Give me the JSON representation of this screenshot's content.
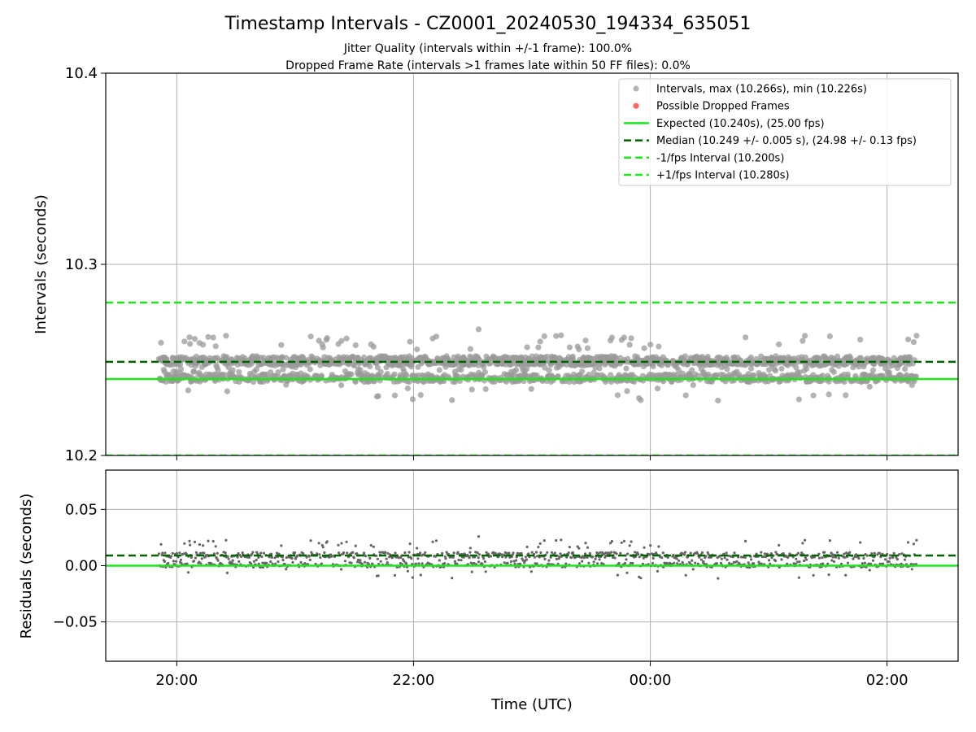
{
  "figure": {
    "title": "Timestamp Intervals - CZ0001_20240530_194334_635051",
    "subtitle_1": "Jitter Quality (intervals within +/-1 frame): 100.0%",
    "subtitle_2": "Dropped Frame Rate (intervals >1 frames late within 50 FF files): 0.0%"
  },
  "colors": {
    "points_top": "#999999",
    "points_bottom": "#666666",
    "dropped": "#ff3333",
    "expected": "#1ae81a",
    "median": "#006400",
    "grid": "#b0b0b0"
  },
  "chart_data": [
    {
      "type": "scatter",
      "panel": "intervals",
      "ylabel": "Intervals (seconds)",
      "ylim": [
        10.2,
        10.4
      ],
      "yticks": [
        "10.2",
        "10.3",
        "10.4"
      ],
      "xlim_hours": [
        19.4,
        26.6
      ],
      "grid": true,
      "legend_position": "upper-right",
      "series": [
        {
          "name": "Intervals, max (10.266s), min (10.226s)",
          "kind": "points",
          "count": 2000,
          "range": [
            10.226,
            10.266
          ]
        },
        {
          "name": "Possible Dropped Frames",
          "kind": "points",
          "count": 0,
          "values": []
        },
        {
          "name": "Expected (10.240s), (25.00 fps)",
          "kind": "hline",
          "value": 10.24,
          "style": "solid"
        },
        {
          "name": "Median (10.249 +/- 0.005 s), (24.98 +/- 0.13 fps)",
          "kind": "hline",
          "value": 10.249,
          "style": "dashed"
        },
        {
          "name": "-1/fps Interval (10.200s)",
          "kind": "hline",
          "value": 10.2,
          "style": "dashed"
        },
        {
          "name": "+1/fps Interval (10.280s)",
          "kind": "hline",
          "value": 10.28,
          "style": "dashed"
        }
      ],
      "data_time_range_hours": [
        19.85,
        26.25
      ]
    },
    {
      "type": "scatter",
      "panel": "residuals",
      "ylabel": "Residuals (seconds)",
      "xlabel": "Time (UTC)",
      "ylim": [
        -0.085,
        0.085
      ],
      "yticks": [
        "−0.05",
        "0.00",
        "0.05"
      ],
      "xticks": [
        "20:00",
        "22:00",
        "00:00",
        "02:00"
      ],
      "grid": true,
      "series": [
        {
          "kind": "points",
          "count": 1100,
          "range": [
            -0.014,
            0.026
          ]
        },
        {
          "kind": "hline",
          "value": 0.0,
          "style": "solid"
        },
        {
          "kind": "hline",
          "value": 0.009,
          "style": "dashed"
        }
      ]
    }
  ]
}
